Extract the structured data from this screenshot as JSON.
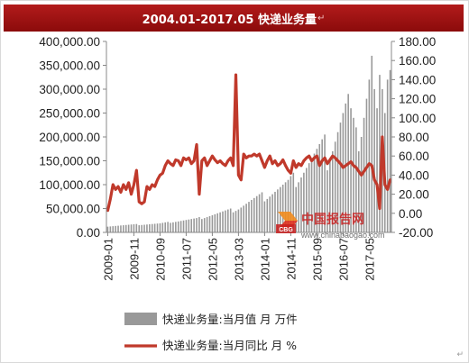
{
  "title": "2004.01-2017.05 快递业务量",
  "title_mark": "↵",
  "watermark": {
    "brand": "中国报告网",
    "url": "www.chinabaogao.com",
    "badge": "CBG"
  },
  "corner_mark": "↵",
  "colors": {
    "bar": "#999999",
    "line": "#c0392b",
    "title_bg": "#a01515",
    "axis": "#888888"
  },
  "chart_data": {
    "type": "bar+line",
    "title": "2004.01-2017.05 快递业务量",
    "y_left": {
      "ylim": [
        0,
        400000
      ],
      "ticks": [
        "0.00",
        "50,000.00",
        "100,000.00",
        "150,000.00",
        "200,000.00",
        "250,000.00",
        "300,000.00",
        "350,000.00",
        "400,000.00"
      ]
    },
    "y_right": {
      "ylim": [
        -20,
        180
      ],
      "ticks": [
        "-20.00",
        "0.00",
        "20.00",
        "40.00",
        "60.00",
        "80.00",
        "100.00",
        "120.00",
        "140.00",
        "160.00",
        "180.00"
      ]
    },
    "x_tick_labels": [
      "2009-01",
      "2009-11",
      "2010-09",
      "2011-07",
      "2012-05",
      "2013-03",
      "2014-01",
      "2014-11",
      "2015-09",
      "2016-07",
      "2017-05"
    ],
    "x_start": "2009-01",
    "x_end": "2017-05",
    "series": [
      {
        "name": "快递业务量:当月值 月 万件",
        "type": "bar",
        "axis": "left",
        "values": [
          12000,
          12500,
          13000,
          13500,
          14000,
          14500,
          15000,
          15500,
          16000,
          16500,
          17000,
          17500,
          15000,
          15500,
          16000,
          16500,
          17000,
          17500,
          18000,
          18500,
          19000,
          20000,
          21000,
          22000,
          20000,
          21000,
          22000,
          23000,
          24000,
          25000,
          26000,
          27000,
          28000,
          29000,
          30000,
          32000,
          28000,
          30000,
          32000,
          34000,
          36000,
          38000,
          40000,
          42000,
          44000,
          46000,
          48000,
          50000,
          42000,
          45000,
          48000,
          52000,
          56000,
          60000,
          64000,
          68000,
          72000,
          76000,
          80000,
          84000,
          65000,
          70000,
          75000,
          80000,
          85000,
          90000,
          95000,
          100000,
          105000,
          110000,
          118000,
          125000,
          95000,
          105000,
          115000,
          125000,
          135000,
          145000,
          155000,
          165000,
          175000,
          185000,
          195000,
          205000,
          130000,
          150000,
          170000,
          190000,
          210000,
          230000,
          250000,
          270000,
          290000,
          260000,
          240000,
          220000,
          170000,
          200000,
          240000,
          280000,
          320000,
          370000,
          300000,
          260000,
          330000,
          300000,
          250000,
          320000,
          340000
        ],
        "note_values": "monthly values"
      },
      {
        "name": "快递业务量:当月同比 月 %",
        "type": "line",
        "axis": "right",
        "values": [
          3,
          15,
          30,
          25,
          28,
          22,
          30,
          25,
          32,
          20,
          30,
          45,
          12,
          10,
          12,
          28,
          25,
          30,
          28,
          35,
          40,
          42,
          50,
          55,
          52,
          50,
          56,
          55,
          50,
          58,
          56,
          58,
          52,
          55,
          72,
          20,
          55,
          58,
          50,
          55,
          60,
          56,
          53,
          55,
          52,
          50,
          55,
          58,
          50,
          145,
          40,
          35,
          62,
          58,
          60,
          60,
          62,
          60,
          62,
          55,
          48,
          55,
          60,
          52,
          55,
          50,
          52,
          56,
          50,
          45,
          42,
          55,
          48,
          52,
          50,
          55,
          58,
          60,
          55,
          58,
          60,
          50,
          55,
          58,
          52,
          56,
          60,
          58,
          55,
          52,
          48,
          50,
          52,
          54,
          50,
          48,
          44,
          40,
          44,
          48,
          52,
          50,
          35,
          30,
          5,
          80,
          30,
          25,
          35
        ]
      }
    ],
    "legend_position": "bottom",
    "grid": false
  }
}
